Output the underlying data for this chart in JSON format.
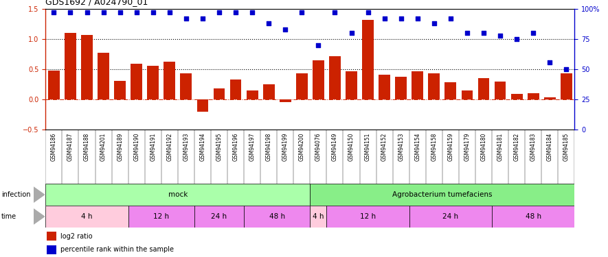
{
  "title": "GDS1692 / A024790_01",
  "samples": [
    "GSM94186",
    "GSM94187",
    "GSM94188",
    "GSM94201",
    "GSM94189",
    "GSM94190",
    "GSM94191",
    "GSM94192",
    "GSM94193",
    "GSM94194",
    "GSM94195",
    "GSM94196",
    "GSM94197",
    "GSM94198",
    "GSM94199",
    "GSM94200",
    "GSM94076",
    "GSM94149",
    "GSM94150",
    "GSM94151",
    "GSM94152",
    "GSM94153",
    "GSM94154",
    "GSM94158",
    "GSM94159",
    "GSM94179",
    "GSM94180",
    "GSM94181",
    "GSM94182",
    "GSM94183",
    "GSM94184",
    "GSM94185"
  ],
  "log2ratio": [
    0.48,
    1.1,
    1.07,
    0.78,
    0.31,
    0.59,
    0.56,
    0.63,
    0.44,
    -0.2,
    0.19,
    0.33,
    0.15,
    0.25,
    -0.04,
    0.44,
    0.65,
    0.72,
    0.47,
    1.32,
    0.41,
    0.38,
    0.47,
    0.43,
    0.29,
    0.15,
    0.35,
    0.3,
    0.1,
    0.11,
    0.04,
    0.44
  ],
  "percentile": [
    97,
    97,
    97,
    97,
    97,
    97,
    97,
    97,
    92,
    92,
    97,
    97,
    97,
    88,
    83,
    97,
    70,
    97,
    80,
    97,
    92,
    92,
    92,
    88,
    92,
    80,
    80,
    78,
    75,
    80,
    56,
    50
  ],
  "bar_color": "#CC2200",
  "dot_color": "#0000CC",
  "left_ylim": [
    -0.5,
    1.5
  ],
  "right_ylim": [
    0,
    100
  ],
  "left_yticks": [
    -0.5,
    0.0,
    0.5,
    1.0,
    1.5
  ],
  "right_yticks": [
    0,
    25,
    50,
    75,
    100
  ],
  "right_yticklabels": [
    "0",
    "25",
    "50",
    "75",
    "100%"
  ],
  "hline_y": [
    0.5,
    1.0
  ],
  "zero_line_y": 0.0,
  "infection_groups": [
    {
      "label": "mock",
      "start": 0,
      "end": 16,
      "color": "#AAFFAA"
    },
    {
      "label": "Agrobacterium tumefaciens",
      "start": 16,
      "end": 32,
      "color": "#88EE88"
    }
  ],
  "time_groups": [
    {
      "label": "4 h",
      "start": 0,
      "end": 5,
      "color": "#FFCCDD"
    },
    {
      "label": "12 h",
      "start": 5,
      "end": 9,
      "color": "#EE88EE"
    },
    {
      "label": "24 h",
      "start": 9,
      "end": 12,
      "color": "#EE88EE"
    },
    {
      "label": "48 h",
      "start": 12,
      "end": 16,
      "color": "#EE88EE"
    },
    {
      "label": "4 h",
      "start": 16,
      "end": 17,
      "color": "#FFCCDD"
    },
    {
      "label": "12 h",
      "start": 17,
      "end": 22,
      "color": "#EE88EE"
    },
    {
      "label": "24 h",
      "start": 22,
      "end": 27,
      "color": "#EE88EE"
    },
    {
      "label": "48 h",
      "start": 27,
      "end": 32,
      "color": "#EE88EE"
    }
  ],
  "infection_label": "infection",
  "time_label": "time",
  "legend_items": [
    {
      "label": "log2 ratio",
      "color": "#CC2200"
    },
    {
      "label": "percentile rank within the sample",
      "color": "#0000CC"
    }
  ]
}
